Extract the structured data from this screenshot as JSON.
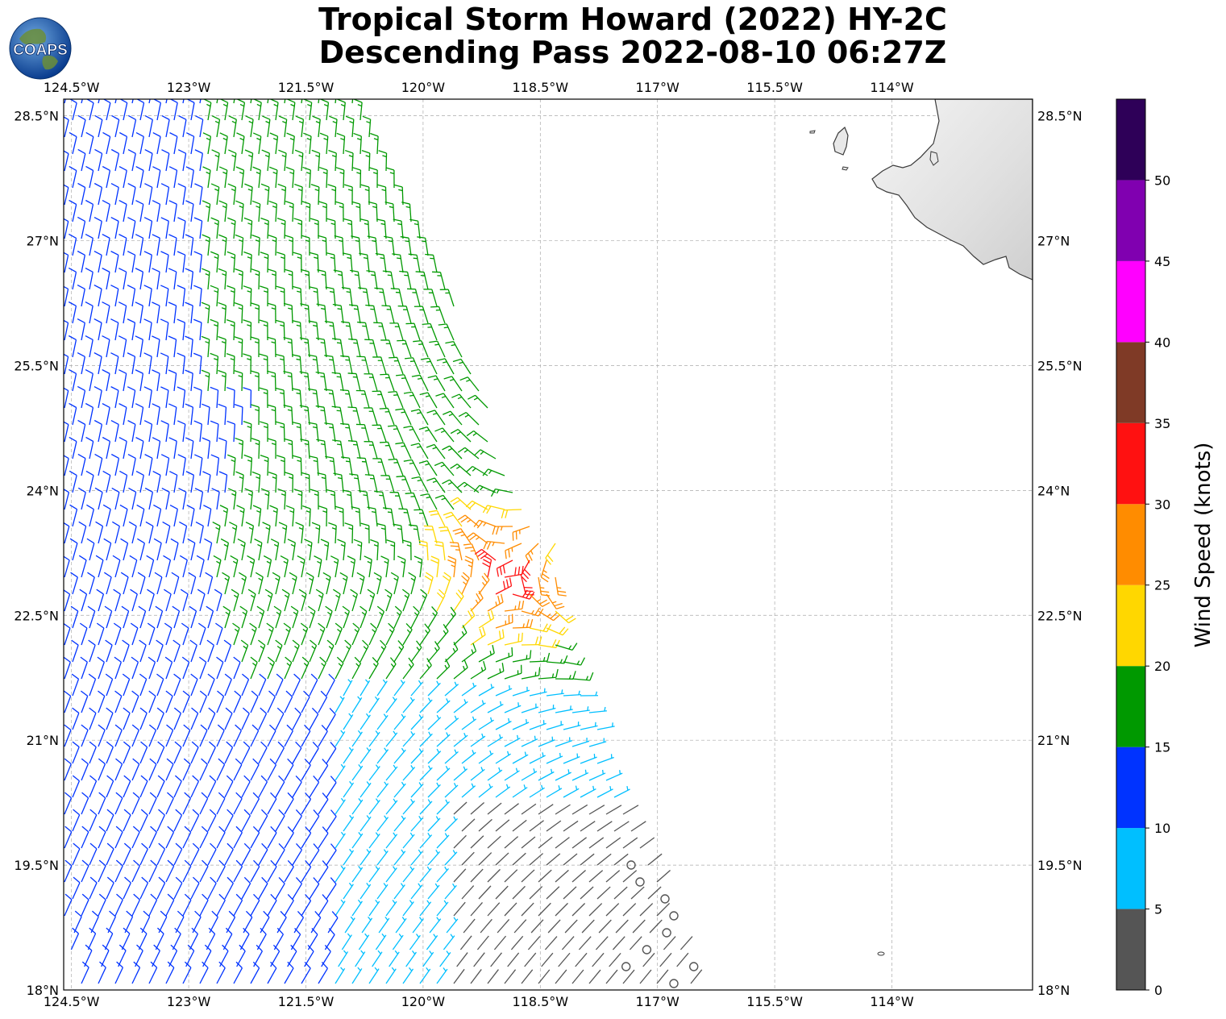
{
  "title": {
    "line1": "Tropical Storm Howard (2022) HY-2C",
    "line2": "Descending Pass 2022-08-10 06:27Z"
  },
  "logo": {
    "text": "COAPS",
    "icon": "globe-icon"
  },
  "map": {
    "lon_range": [
      -124.6,
      -112.2
    ],
    "lat_range": [
      18.0,
      28.7
    ],
    "lon_ticks": [
      "124.5°W",
      "123°W",
      "121.5°W",
      "120°W",
      "118.5°W",
      "117°W",
      "115.5°W",
      "114°W"
    ],
    "lat_ticks": [
      "28.5°N",
      "27°N",
      "25.5°N",
      "24°N",
      "22.5°N",
      "21°N",
      "19.5°N",
      "18°N"
    ],
    "grid": true,
    "storm_center": [
      -118.95,
      23.0
    ],
    "land": "Baja California coastline, top-right corner"
  },
  "colorbar": {
    "label": "Wind Speed (knots)",
    "ticks": [
      "0",
      "5",
      "10",
      "15",
      "20",
      "25",
      "30",
      "35",
      "40",
      "45",
      "50"
    ],
    "bins": [
      {
        "min": 0,
        "max": 5,
        "color": "#555555"
      },
      {
        "min": 5,
        "max": 10,
        "color": "#00bfff"
      },
      {
        "min": 10,
        "max": 15,
        "color": "#0033ff"
      },
      {
        "min": 15,
        "max": 20,
        "color": "#009900"
      },
      {
        "min": 20,
        "max": 25,
        "color": "#ffd700"
      },
      {
        "min": 25,
        "max": 30,
        "color": "#ff8c00"
      },
      {
        "min": 30,
        "max": 35,
        "color": "#ff1111"
      },
      {
        "min": 35,
        "max": 40,
        "color": "#7f3a26"
      },
      {
        "min": 40,
        "max": 45,
        "color": "#ff00ff"
      },
      {
        "min": 45,
        "max": 50,
        "color": "#8000b0"
      },
      {
        "min": 50,
        "max": 55,
        "color": "#2e0058"
      }
    ]
  }
}
